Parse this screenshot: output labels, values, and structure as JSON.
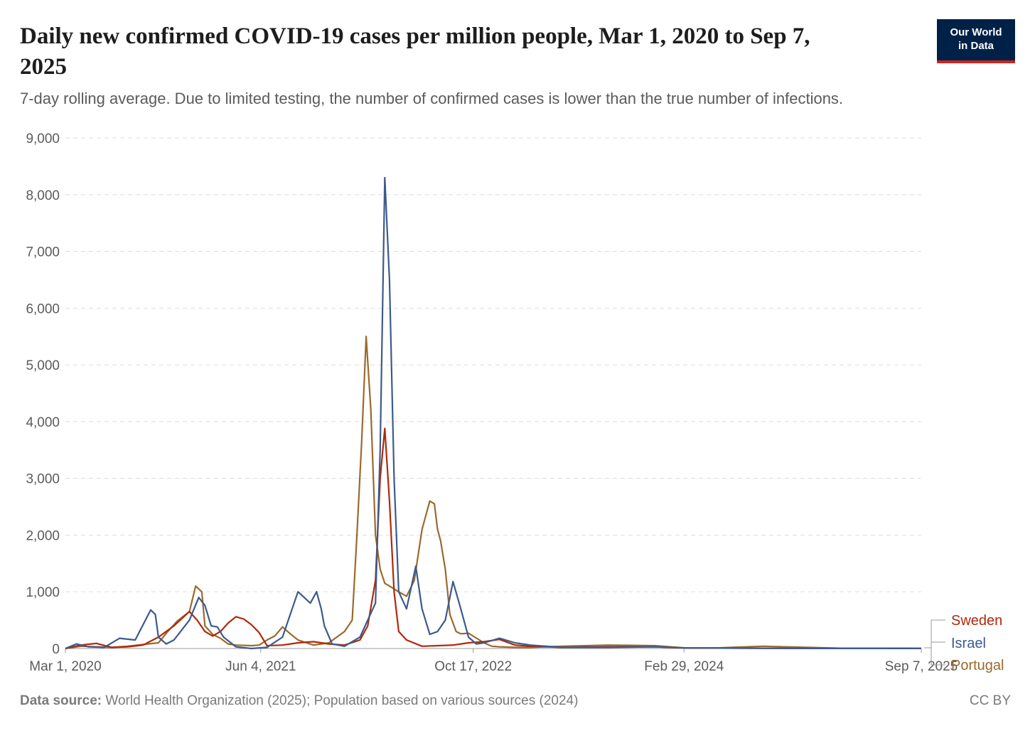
{
  "title": "Daily new confirmed COVID-19 cases per million people, Mar 1, 2020 to Sep 7, 2025",
  "subtitle": "7-day rolling average. Due to limited testing, the number of confirmed cases is lower than the true number of infections.",
  "logo": {
    "line1": "Our World",
    "line2": "in Data"
  },
  "footer": {
    "source_label": "Data source:",
    "source_text": " World Health Organization (2025); Population based on various sources (2024)",
    "license": "CC BY"
  },
  "colors": {
    "Sweden": "#b0280b",
    "Israel": "#3c5a8e",
    "Portugal": "#9a6a2c"
  },
  "chart_data": {
    "type": "line",
    "title": "Daily new confirmed COVID-19 cases per million people, Mar 1, 2020 to Sep 7, 2025",
    "xlabel": "",
    "ylabel": "",
    "x_unit": "years since Mar 1, 2020",
    "xlim": [
      0,
      5.52
    ],
    "ylim": [
      0,
      9000
    ],
    "yticks": [
      0,
      1000,
      2000,
      3000,
      4000,
      5000,
      6000,
      7000,
      8000,
      9000
    ],
    "ytick_labels": [
      "0",
      "1,000",
      "2,000",
      "3,000",
      "4,000",
      "5,000",
      "6,000",
      "7,000",
      "8,000",
      "9,000"
    ],
    "xticks": [
      0,
      1.26,
      2.63,
      3.99,
      5.52
    ],
    "xtick_labels": [
      "Mar 1, 2020",
      "Jun 4, 2021",
      "Oct 17, 2022",
      "Feb 29, 2024",
      "Sep 7, 2025"
    ],
    "grid": true,
    "legend": "right, end of lines",
    "series": [
      {
        "name": "Sweden",
        "x": [
          0,
          0.1,
          0.2,
          0.3,
          0.4,
          0.5,
          0.6,
          0.7,
          0.8,
          0.85,
          0.9,
          0.95,
          1.0,
          1.05,
          1.1,
          1.15,
          1.2,
          1.25,
          1.3,
          1.4,
          1.5,
          1.6,
          1.7,
          1.8,
          1.9,
          1.95,
          2.0,
          2.03,
          2.06,
          2.09,
          2.12,
          2.15,
          2.2,
          2.3,
          2.5,
          2.6,
          2.7,
          2.8,
          2.9,
          3.0,
          3.2,
          3.5,
          3.8,
          4.0,
          4.5,
          5.0,
          5.52
        ],
        "y": [
          0,
          60,
          90,
          20,
          30,
          60,
          200,
          400,
          650,
          500,
          300,
          220,
          300,
          450,
          560,
          520,
          420,
          280,
          50,
          60,
          100,
          120,
          80,
          60,
          150,
          400,
          1200,
          3000,
          3880,
          2600,
          1000,
          300,
          150,
          40,
          60,
          100,
          120,
          160,
          60,
          40,
          20,
          30,
          30,
          10,
          5,
          3,
          2
        ]
      },
      {
        "name": "Israel",
        "x": [
          0,
          0.07,
          0.15,
          0.25,
          0.35,
          0.45,
          0.55,
          0.58,
          0.6,
          0.65,
          0.7,
          0.8,
          0.86,
          0.9,
          0.94,
          0.98,
          1.02,
          1.1,
          1.2,
          1.3,
          1.4,
          1.5,
          1.58,
          1.62,
          1.65,
          1.67,
          1.72,
          1.8,
          1.9,
          2.0,
          2.03,
          2.06,
          2.09,
          2.12,
          2.15,
          2.2,
          2.26,
          2.3,
          2.35,
          2.4,
          2.45,
          2.5,
          2.55,
          2.6,
          2.65,
          2.7,
          2.8,
          2.9,
          3.0,
          3.2,
          3.5,
          3.8,
          4.0,
          4.5,
          5.0,
          5.52
        ],
        "y": [
          0,
          80,
          30,
          20,
          180,
          150,
          680,
          600,
          200,
          80,
          150,
          500,
          900,
          760,
          400,
          380,
          200,
          30,
          0,
          20,
          200,
          1000,
          800,
          1000,
          700,
          400,
          80,
          40,
          200,
          800,
          3500,
          8300,
          6500,
          3000,
          1000,
          700,
          1450,
          700,
          250,
          300,
          500,
          1180,
          700,
          200,
          80,
          100,
          180,
          100,
          60,
          20,
          20,
          30,
          10,
          5,
          3,
          2
        ]
      },
      {
        "name": "Portugal",
        "x": [
          0,
          0.1,
          0.2,
          0.3,
          0.4,
          0.5,
          0.6,
          0.66,
          0.72,
          0.8,
          0.84,
          0.88,
          0.9,
          0.95,
          1.0,
          1.05,
          1.1,
          1.2,
          1.25,
          1.3,
          1.35,
          1.4,
          1.45,
          1.5,
          1.6,
          1.7,
          1.8,
          1.85,
          1.88,
          1.91,
          1.94,
          1.97,
          2.0,
          2.03,
          2.06,
          2.09,
          2.12,
          2.15,
          2.2,
          2.25,
          2.3,
          2.35,
          2.38,
          2.4,
          2.42,
          2.45,
          2.48,
          2.52,
          2.55,
          2.6,
          2.7,
          2.75,
          2.8,
          2.9,
          3.0,
          3.2,
          3.5,
          3.8,
          4.0,
          4.2,
          4.5,
          5.0,
          5.52
        ],
        "y": [
          0,
          40,
          30,
          20,
          40,
          70,
          100,
          300,
          480,
          650,
          1100,
          1000,
          400,
          250,
          180,
          80,
          60,
          50,
          60,
          150,
          220,
          380,
          260,
          150,
          60,
          100,
          300,
          500,
          2000,
          3600,
          5500,
          4200,
          2000,
          1400,
          1150,
          1100,
          1050,
          1000,
          920,
          1200,
          2100,
          2600,
          2550,
          2100,
          1900,
          1400,
          600,
          300,
          260,
          270,
          100,
          40,
          30,
          20,
          20,
          40,
          60,
          50,
          10,
          10,
          40,
          5,
          2
        ]
      }
    ]
  }
}
